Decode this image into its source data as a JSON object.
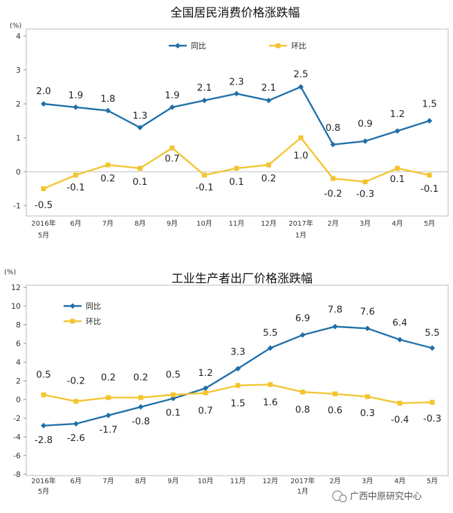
{
  "chart_data": [
    {
      "type": "line",
      "title": "全国居民消费价格涨跌幅",
      "ylabel": "(%)",
      "ylim": [
        -1,
        4
      ],
      "yticks": [
        "4",
        "3",
        "2",
        "1",
        "0",
        "-1"
      ],
      "categories": [
        "2016年\n5月",
        "6月",
        "7月",
        "8月",
        "9月",
        "10月",
        "11月",
        "12月",
        "2017年\n1月",
        "2月",
        "3月",
        "4月",
        "5月"
      ],
      "series": [
        {
          "name": "同比",
          "color": "#1f6fa9",
          "values": [
            2.0,
            1.9,
            1.8,
            1.3,
            1.9,
            2.1,
            2.3,
            2.1,
            2.5,
            0.8,
            0.9,
            1.2,
            1.5
          ],
          "labels": [
            "2.0",
            "1.9",
            "1.8",
            "1.3",
            "1.9",
            "2.1",
            "2.3",
            "2.1",
            "2.5",
            "0.8",
            "0.9",
            "1.2",
            "1.5"
          ]
        },
        {
          "name": "环比",
          "color": "#f2c530",
          "values": [
            -0.5,
            -0.1,
            0.2,
            0.1,
            0.7,
            -0.1,
            0.1,
            0.2,
            1.0,
            -0.2,
            -0.3,
            0.1,
            -0.1
          ],
          "labels": [
            "-0.5",
            "-0.1",
            "0.2",
            "0.1",
            "0.7",
            "-0.1",
            "0.1",
            "0.2",
            "1.0",
            "-0.2",
            "-0.3",
            "0.1",
            "-0.1"
          ]
        }
      ],
      "legend": "top-left",
      "grid": false
    },
    {
      "type": "line",
      "title": "工业生产者出厂价格涨跌幅",
      "ylabel": "(%)",
      "ylim": [
        -8,
        12
      ],
      "yticks": [
        "12",
        "10",
        "8",
        "6",
        "4",
        "2",
        "0",
        "-2",
        "-4",
        "-6",
        "-8"
      ],
      "categories": [
        "2016年\n5月",
        "6月",
        "7月",
        "8月",
        "9月",
        "10月",
        "11月",
        "12月",
        "2017年\n1月",
        "2月",
        "3月",
        "4月",
        "5月"
      ],
      "series": [
        {
          "name": "同比",
          "color": "#1f6fa9",
          "values": [
            -2.8,
            -2.6,
            -1.7,
            -0.8,
            0.1,
            1.2,
            3.3,
            5.5,
            6.9,
            7.8,
            7.6,
            6.4,
            5.5
          ],
          "labels": [
            "-2.8",
            "-2.6",
            "-1.7",
            "-0.8",
            "0.1",
            "1.2",
            "3.3",
            "5.5",
            "6.9",
            "7.8",
            "7.6",
            "6.4",
            "5.5"
          ]
        },
        {
          "name": "环比",
          "color": "#f2c530",
          "values": [
            0.5,
            -0.2,
            0.2,
            0.2,
            0.5,
            0.7,
            1.5,
            1.6,
            0.8,
            0.6,
            0.3,
            -0.4,
            -0.3
          ],
          "labels": [
            "0.5",
            "-0.2",
            "0.2",
            "0.2",
            "0.5",
            "0.7",
            "1.5",
            "1.6",
            "0.8",
            "0.6",
            "0.3",
            "-0.4",
            "-0.3"
          ]
        }
      ],
      "legend": "top-left",
      "grid": false
    }
  ],
  "watermark": {
    "text": "广西中原研究中心"
  }
}
